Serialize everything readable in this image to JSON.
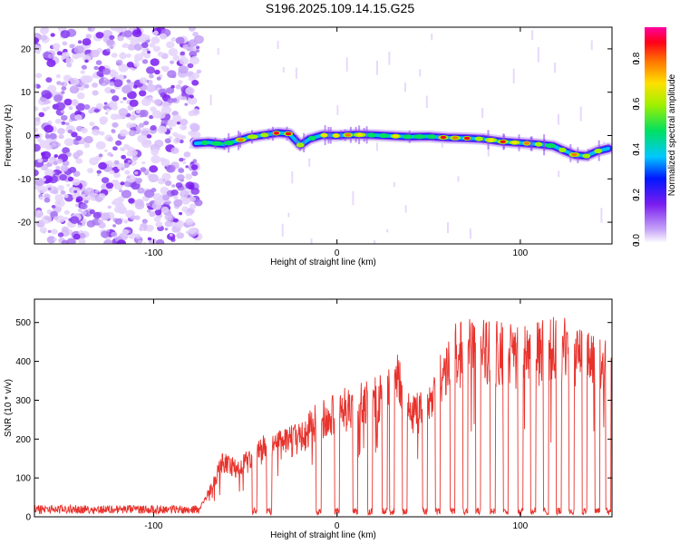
{
  "title": "S196.2025.109.14.15.G25",
  "chart_data": [
    {
      "type": "heatmap",
      "xlabel": "Height of straight line (km)",
      "ylabel": "Frequency (Hz)",
      "xlim": [
        -165,
        150
      ],
      "ylim": [
        -25,
        25
      ],
      "xticks": [
        -100,
        0,
        100
      ],
      "xtick_labels": [
        "-100",
        "0",
        "100"
      ],
      "yticks": [
        -20,
        -10,
        0,
        10,
        20
      ],
      "ytick_labels": [
        "-20",
        "-10",
        "0",
        "10",
        "20"
      ],
      "noise_region_x": [
        -165,
        -75
      ],
      "ridge": {
        "x": [
          -77,
          -70,
          -62,
          -55,
          -48,
          -40,
          -32,
          -26,
          -20,
          -15,
          -8,
          0,
          10,
          20,
          30,
          40,
          50,
          60,
          70,
          80,
          90,
          100,
          110,
          118,
          124,
          130,
          136,
          142,
          148
        ],
        "frequency": [
          -1.8,
          -1.6,
          -2.0,
          -1.3,
          -0.4,
          0.1,
          0.6,
          0.4,
          -2.2,
          -0.8,
          0.1,
          0.0,
          0.2,
          0.1,
          -0.1,
          -0.3,
          -0.2,
          -0.5,
          -0.6,
          -0.8,
          -1.4,
          -1.7,
          -2.0,
          -2.4,
          -3.5,
          -4.5,
          -4.7,
          -3.6,
          -3.0
        ]
      },
      "colorbar": {
        "label": "Normalized spectral amplitude",
        "ticks": [
          0.0,
          0.2,
          0.4,
          0.6,
          0.8
        ],
        "tick_labels": [
          "0.0",
          "0.2",
          "0.4",
          "0.6",
          "0.8"
        ],
        "range": [
          0,
          0.95
        ]
      }
    },
    {
      "type": "line",
      "xlabel": "Height of straight line (km)",
      "ylabel": "SNR (10 * v/v)",
      "xlim": [
        -165,
        150
      ],
      "ylim": [
        0,
        560
      ],
      "xticks": [
        -100,
        0,
        100
      ],
      "xtick_labels": [
        "-100",
        "0",
        "100"
      ],
      "yticks": [
        0,
        100,
        200,
        300,
        400,
        500
      ],
      "ytick_labels": [
        "0",
        "100",
        "200",
        "300",
        "400",
        "500"
      ],
      "color": "#e8322c",
      "envelope": {
        "x": [
          -165,
          -75,
          -68,
          -62,
          -55,
          -48,
          -40,
          -30,
          -20,
          -10,
          0,
          10,
          20,
          30,
          33,
          40,
          50,
          55,
          60,
          65,
          75,
          90,
          100,
          110,
          120,
          130,
          140,
          150
        ],
        "snr": [
          20,
          22,
          100,
          170,
          150,
          175,
          210,
          225,
          245,
          300,
          330,
          340,
          360,
          385,
          440,
          310,
          350,
          420,
          460,
          505,
          510,
          505,
          500,
          510,
          520,
          510,
          500,
          460
        ]
      },
      "dropouts_x": [
        -45,
        -37,
        -10,
        0,
        10,
        18,
        26,
        30,
        37,
        48,
        55,
        63,
        70,
        77,
        85,
        92,
        100,
        107,
        114,
        121,
        128,
        135,
        142,
        148
      ]
    }
  ]
}
